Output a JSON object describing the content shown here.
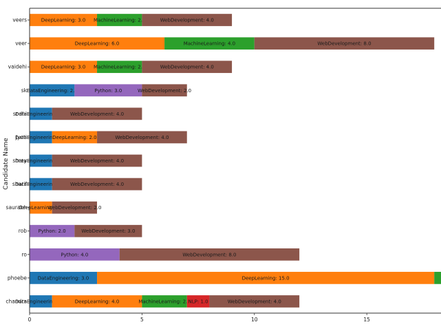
{
  "chart_data": {
    "type": "bar",
    "orientation": "horizontal",
    "stacked": true,
    "title": "",
    "xlabel": "",
    "ylabel": "Candidate Name",
    "xlim": [
      0,
      18.3
    ],
    "xticks": [
      0,
      5,
      10,
      15
    ],
    "grid": false,
    "legend": "none",
    "colors": {
      "DataEngineering": "#1f77b4",
      "DeepLearning": "#ff7f0e",
      "MachineLearning": "#2ca02c",
      "NLP": "#d62728",
      "Python": "#9467bd",
      "WebDevelopment": "#8c564b"
    },
    "categories": [
      "veers",
      "veer",
      "vaidehi",
      "sk",
      "sodhi",
      "Jyoti",
      "shrey",
      "sharif",
      "saurabh",
      "rob",
      "ro",
      "phoebe",
      "chandra"
    ],
    "bars": [
      {
        "name": "veers",
        "segments": [
          {
            "skill": "DeepLearning",
            "value": 3.0,
            "label": "DeepLearning: 3.0"
          },
          {
            "skill": "MachineLearning",
            "value": 2.0,
            "label": "MachineLearning: 2.0"
          },
          {
            "skill": "WebDevelopment",
            "value": 4.0,
            "label": "WebDevelopment: 4.0"
          }
        ]
      },
      {
        "name": "veer",
        "segments": [
          {
            "skill": "DeepLearning",
            "value": 6.0,
            "label": "DeepLearning: 6.0"
          },
          {
            "skill": "MachineLearning",
            "value": 4.0,
            "label": "MachineLearning: 4.0"
          },
          {
            "skill": "WebDevelopment",
            "value": 8.0,
            "label": "WebDevelopment: 8.0"
          }
        ]
      },
      {
        "name": "vaidehi",
        "segments": [
          {
            "skill": "DeepLearning",
            "value": 3.0,
            "label": "DeepLearning: 3.0"
          },
          {
            "skill": "MachineLearning",
            "value": 2.0,
            "label": "MachineLearning: 2.0"
          },
          {
            "skill": "WebDevelopment",
            "value": 4.0,
            "label": "WebDevelopment: 4.0"
          }
        ]
      },
      {
        "name": "sk",
        "segments": [
          {
            "skill": "DataEngineering",
            "value": 2.0,
            "label": "DataEngineering: 2.0"
          },
          {
            "skill": "Python",
            "value": 3.0,
            "label": "Python: 3.0"
          },
          {
            "skill": "WebDevelopment",
            "value": 2.0,
            "label": "WebDevelopment: 2.0"
          }
        ]
      },
      {
        "name": "sodhi",
        "segments": [
          {
            "skill": "DataEngineering",
            "value": 1.0,
            "label": "DataEngineering: 1.0"
          },
          {
            "skill": "WebDevelopment",
            "value": 4.0,
            "label": "WebDevelopment: 4.0"
          }
        ]
      },
      {
        "name": "Jyoti",
        "segments": [
          {
            "skill": "DataEngineering",
            "value": 1.0,
            "label": "DataEngineering: 1.0"
          },
          {
            "skill": "DeepLearning",
            "value": 2.0,
            "label": "DeepLearning: 2.0"
          },
          {
            "skill": "WebDevelopment",
            "value": 4.0,
            "label": "WebDevelopment: 4.0"
          }
        ]
      },
      {
        "name": "shrey",
        "segments": [
          {
            "skill": "DataEngineering",
            "value": 1.0,
            "label": "DataEngineering: 1.0"
          },
          {
            "skill": "WebDevelopment",
            "value": 4.0,
            "label": "WebDevelopment: 4.0"
          }
        ]
      },
      {
        "name": "sharif",
        "segments": [
          {
            "skill": "DataEngineering",
            "value": 1.0,
            "label": "DataEngineering: 1.0"
          },
          {
            "skill": "WebDevelopment",
            "value": 4.0,
            "label": "WebDevelopment: 4.0"
          }
        ]
      },
      {
        "name": "saurabh",
        "segments": [
          {
            "skill": "DeepLearning",
            "value": 1.0,
            "label": "DeepLearning: 1.0"
          },
          {
            "skill": "WebDevelopment",
            "value": 2.0,
            "label": "WebDevelopment: 2.0"
          }
        ]
      },
      {
        "name": "rob",
        "segments": [
          {
            "skill": "Python",
            "value": 2.0,
            "label": "Python: 2.0"
          },
          {
            "skill": "WebDevelopment",
            "value": 3.0,
            "label": "WebDevelopment: 3.0"
          }
        ]
      },
      {
        "name": "ro",
        "segments": [
          {
            "skill": "Python",
            "value": 4.0,
            "label": "Python: 4.0"
          },
          {
            "skill": "WebDevelopment",
            "value": 8.0,
            "label": "WebDevelopment: 8.0"
          }
        ]
      },
      {
        "name": "phoebe",
        "segments": [
          {
            "skill": "DataEngineering",
            "value": 3.0,
            "label": "DataEngineering: 3.0"
          },
          {
            "skill": "DeepLearning",
            "value": 15.0,
            "label": "DeepLearning: 15.0"
          },
          {
            "skill": "MachineLearning",
            "value": 1.0,
            "label": ""
          }
        ]
      },
      {
        "name": "chandra",
        "segments": [
          {
            "skill": "DataEngineering",
            "value": 1.0,
            "label": "DataEngineering: 1.0"
          },
          {
            "skill": "DeepLearning",
            "value": 4.0,
            "label": "DeepLearning: 4.0"
          },
          {
            "skill": "MachineLearning",
            "value": 2.0,
            "label": "MachineLearning: 2.0"
          },
          {
            "skill": "NLP",
            "value": 1.0,
            "label": "NLP: 1.0"
          },
          {
            "skill": "WebDevelopment",
            "value": 4.0,
            "label": "WebDevelopment: 4.0"
          }
        ]
      }
    ]
  }
}
